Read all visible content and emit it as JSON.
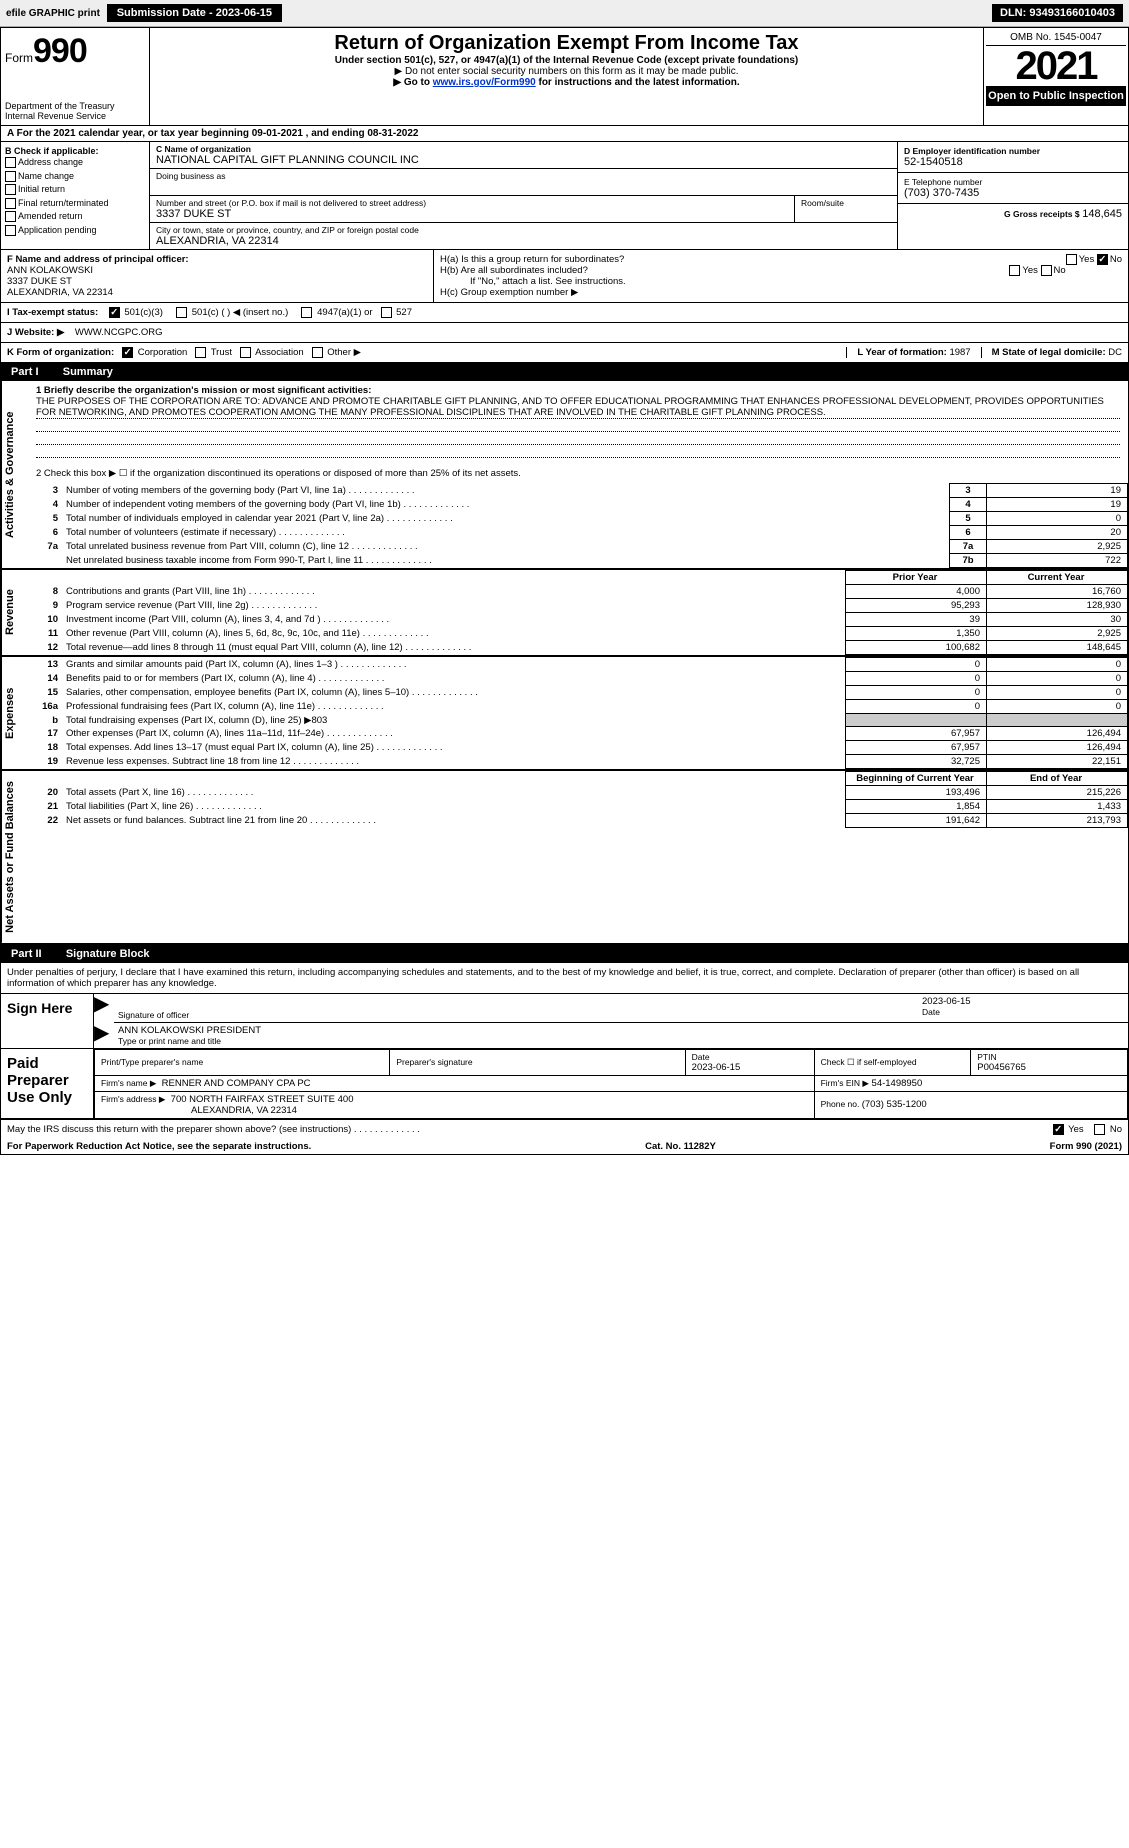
{
  "toolbar": {
    "efile_label": "efile GRAPHIC print",
    "submission_label": "Submission Date - 2023-06-15",
    "dln_label": "DLN: 93493166010403"
  },
  "header": {
    "form_prefix": "Form",
    "form_number": "990",
    "dept": "Department of the Treasury",
    "irs": "Internal Revenue Service",
    "title": "Return of Organization Exempt From Income Tax",
    "sub": "Under section 501(c), 527, or 4947(a)(1) of the Internal Revenue Code (except private foundations)",
    "note1": "▶ Do not enter social security numbers on this form as it may be made public.",
    "note2_pre": "▶ Go to ",
    "note2_link": "www.irs.gov/Form990",
    "note2_post": " for instructions and the latest information.",
    "omb": "OMB No. 1545-0047",
    "year": "2021",
    "open": "Open to Public Inspection"
  },
  "taxyear": {
    "label_a": "A For the 2021 calendar year, or tax year beginning ",
    "begin": "09-01-2021",
    "mid": "  , and ending ",
    "end": "08-31-2022"
  },
  "sectionb": {
    "label": "B Check if applicable:",
    "items": [
      "Address change",
      "Name change",
      "Initial return",
      "Final return/terminated",
      "Amended return",
      "Application pending"
    ],
    "c_label": "C Name of organization",
    "org_name": "NATIONAL CAPITAL GIFT PLANNING COUNCIL INC",
    "dba_label": "Doing business as",
    "dba": "",
    "street_label": "Number and street (or P.O. box if mail is not delivered to street address)",
    "room_label": "Room/suite",
    "street": "3337 DUKE ST",
    "city_label": "City or town, state or province, country, and ZIP or foreign postal code",
    "city": "ALEXANDRIA, VA  22314",
    "d_label": "D Employer identification number",
    "ein": "52-1540518",
    "e_label": "E Telephone number",
    "phone": "(703) 370-7435",
    "g_label": "G Gross receipts $",
    "gross": "148,645"
  },
  "sectionf": {
    "f_label": "F Name and address of principal officer:",
    "name": "ANN KOLAKOWSKI",
    "addr1": "3337 DUKE ST",
    "addr2": "ALEXANDRIA, VA  22314",
    "ha_label": "H(a)  Is this a group return for subordinates?",
    "ha_no": "No",
    "hb_label": "H(b)  Are all subordinates included?",
    "hb_note": "If \"No,\" attach a list. See instructions.",
    "hc_label": "H(c)  Group exemption number ▶",
    "yes": "Yes",
    "no": "No"
  },
  "statusrow": {
    "i_label": "I   Tax-exempt status:",
    "s1": "501(c)(3)",
    "s2": "501(c) (  ) ◀ (insert no.)",
    "s3": "4947(a)(1) or",
    "s4": "527"
  },
  "website": {
    "j_label": "J   Website: ▶",
    "url": "WWW.NCGPC.ORG"
  },
  "korg": {
    "k_label": "K Form of organization:",
    "o1": "Corporation",
    "o2": "Trust",
    "o3": "Association",
    "o4": "Other ▶",
    "l_label": "L Year of formation: ",
    "l_val": "1987",
    "m_label": "M State of legal domicile: ",
    "m_val": "DC"
  },
  "part1": {
    "label": "Part I",
    "title": "Summary",
    "q1_label": "1  Briefly describe the organization's mission or most significant activities:",
    "mission": "THE PURPOSES OF THE CORPORATION ARE TO: ADVANCE AND PROMOTE CHARITABLE GIFT PLANNING, AND TO OFFER EDUCATIONAL PROGRAMMING THAT ENHANCES PROFESSIONAL DEVELOPMENT, PROVIDES OPPORTUNITIES FOR NETWORKING, AND PROMOTES COOPERATION AMONG THE MANY PROFESSIONAL DISCIPLINES THAT ARE INVOLVED IN THE CHARITABLE GIFT PLANNING PROCESS.",
    "q2_label": "2   Check this box ▶ ☐  if the organization discontinued its operations or disposed of more than 25% of its net assets."
  },
  "side_tabs": {
    "gov": "Activities & Governance",
    "rev": "Revenue",
    "exp": "Expenses",
    "net": "Net Assets or Fund Balances"
  },
  "gov_rows": [
    {
      "n": "3",
      "desc": "Number of voting members of the governing body (Part VI, line 1a)",
      "idx": "3",
      "val": "19"
    },
    {
      "n": "4",
      "desc": "Number of independent voting members of the governing body (Part VI, line 1b)",
      "idx": "4",
      "val": "19"
    },
    {
      "n": "5",
      "desc": "Total number of individuals employed in calendar year 2021 (Part V, line 2a)",
      "idx": "5",
      "val": "0"
    },
    {
      "n": "6",
      "desc": "Total number of volunteers (estimate if necessary)",
      "idx": "6",
      "val": "20"
    },
    {
      "n": "7a",
      "desc": "Total unrelated business revenue from Part VIII, column (C), line 12",
      "idx": "7a",
      "val": "2,925"
    },
    {
      "n": "",
      "desc": "Net unrelated business taxable income from Form 990-T, Part I, line 11",
      "idx": "7b",
      "val": "722"
    }
  ],
  "col_headers": {
    "prior": "Prior Year",
    "current": "Current Year",
    "begin": "Beginning of Current Year",
    "end": "End of Year"
  },
  "rev_rows": [
    {
      "n": "8",
      "desc": "Contributions and grants (Part VIII, line 1h)",
      "prior": "4,000",
      "cur": "16,760"
    },
    {
      "n": "9",
      "desc": "Program service revenue (Part VIII, line 2g)",
      "prior": "95,293",
      "cur": "128,930"
    },
    {
      "n": "10",
      "desc": "Investment income (Part VIII, column (A), lines 3, 4, and 7d )",
      "prior": "39",
      "cur": "30"
    },
    {
      "n": "11",
      "desc": "Other revenue (Part VIII, column (A), lines 5, 6d, 8c, 9c, 10c, and 11e)",
      "prior": "1,350",
      "cur": "2,925"
    },
    {
      "n": "12",
      "desc": "Total revenue—add lines 8 through 11 (must equal Part VIII, column (A), line 12)",
      "prior": "100,682",
      "cur": "148,645"
    }
  ],
  "exp_rows": [
    {
      "n": "13",
      "desc": "Grants and similar amounts paid (Part IX, column (A), lines 1–3 )",
      "prior": "0",
      "cur": "0"
    },
    {
      "n": "14",
      "desc": "Benefits paid to or for members (Part IX, column (A), line 4)",
      "prior": "0",
      "cur": "0"
    },
    {
      "n": "15",
      "desc": "Salaries, other compensation, employee benefits (Part IX, column (A), lines 5–10)",
      "prior": "0",
      "cur": "0"
    },
    {
      "n": "16a",
      "desc": "Professional fundraising fees (Part IX, column (A), line 11e)",
      "prior": "0",
      "cur": "0"
    },
    {
      "n": "b",
      "desc": "Total fundraising expenses (Part IX, column (D), line 25) ▶803",
      "prior": "",
      "cur": "",
      "grey": true
    },
    {
      "n": "17",
      "desc": "Other expenses (Part IX, column (A), lines 11a–11d, 11f–24e)",
      "prior": "67,957",
      "cur": "126,494"
    },
    {
      "n": "18",
      "desc": "Total expenses. Add lines 13–17 (must equal Part IX, column (A), line 25)",
      "prior": "67,957",
      "cur": "126,494"
    },
    {
      "n": "19",
      "desc": "Revenue less expenses. Subtract line 18 from line 12",
      "prior": "32,725",
      "cur": "22,151"
    }
  ],
  "net_rows": [
    {
      "n": "20",
      "desc": "Total assets (Part X, line 16)",
      "prior": "193,496",
      "cur": "215,226"
    },
    {
      "n": "21",
      "desc": "Total liabilities (Part X, line 26)",
      "prior": "1,854",
      "cur": "1,433"
    },
    {
      "n": "22",
      "desc": "Net assets or fund balances. Subtract line 21 from line 20",
      "prior": "191,642",
      "cur": "213,793"
    }
  ],
  "part2": {
    "label": "Part II",
    "title": "Signature Block",
    "penalty": "Under penalties of perjury, I declare that I have examined this return, including accompanying schedules and statements, and to the best of my knowledge and belief, it is true, correct, and complete. Declaration of preparer (other than officer) is based on all information of which preparer has any knowledge."
  },
  "sign": {
    "sign_here": "Sign Here",
    "sig_officer": "Signature of officer",
    "date_label": "Date",
    "date_val": "2023-06-15",
    "name": "ANN KOLAKOWSKI  PRESIDENT",
    "name_label": "Type or print name and title"
  },
  "paid": {
    "label": "Paid Preparer Use Only",
    "col1": "Print/Type preparer's name",
    "col2": "Preparer's signature",
    "col3_label": "Date",
    "col3_val": "2023-06-15",
    "col4_label": "Check ☐ if self-employed",
    "col5_label": "PTIN",
    "col5_val": "P00456765",
    "firm_name_label": "Firm's name     ▶",
    "firm_name": "RENNER AND COMPANY CPA PC",
    "firm_ein_label": "Firm's EIN ▶",
    "firm_ein": "54-1498950",
    "firm_addr_label": "Firm's address ▶",
    "firm_addr1": "700 NORTH FAIRFAX STREET SUITE 400",
    "firm_addr2": "ALEXANDRIA, VA  22314",
    "phone_label": "Phone no. ",
    "phone": "(703) 535-1200"
  },
  "footer": {
    "discuss": "May the IRS discuss this return with the preparer shown above? (see instructions)",
    "yes": "Yes",
    "no": "No",
    "pra": "For Paperwork Reduction Act Notice, see the separate instructions.",
    "cat": "Cat. No. 11282Y",
    "form": "Form 990 (2021)"
  },
  "style": {
    "bg": "#ffffff",
    "link_color": "#0033cc",
    "grey_fill": "#cccccc"
  }
}
